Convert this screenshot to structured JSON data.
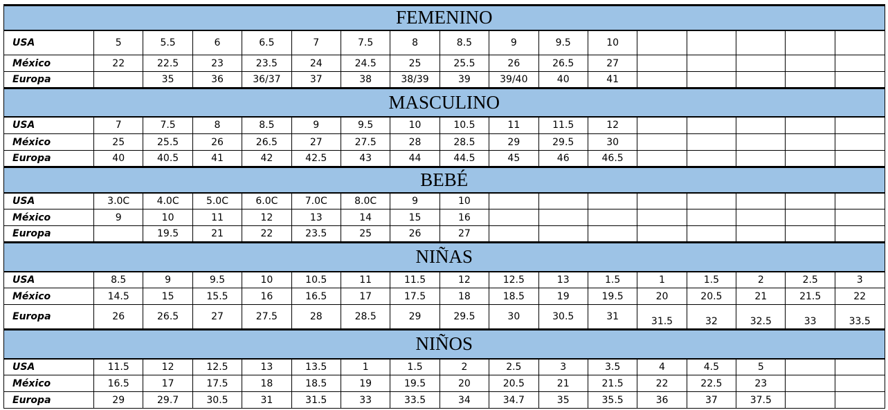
{
  "header_color": "#9dc3e6",
  "row_labels": [
    "USA",
    "México",
    "Europa"
  ],
  "sections": [
    {
      "title": "FEMENINO",
      "rows": [
        [
          "5",
          "5.5",
          "6",
          "6.5",
          "7",
          "7.5",
          "8",
          "8.5",
          "9",
          "9.5",
          "10",
          "",
          "",
          "",
          "",
          ""
        ],
        [
          "22",
          "22.5",
          "23",
          "23.5",
          "24",
          "24.5",
          "25",
          "25.5",
          "26",
          "26.5",
          "27",
          "",
          "",
          "",
          "",
          ""
        ],
        [
          "",
          "35",
          "36",
          "36/37",
          "37",
          "38",
          "38/39",
          "39",
          "39/40",
          "40",
          "41",
          "",
          "",
          "",
          "",
          ""
        ]
      ]
    },
    {
      "title": "MASCULINO",
      "rows": [
        [
          "7",
          "7.5",
          "8",
          "8.5",
          "9",
          "9.5",
          "10",
          "10.5",
          "11",
          "11.5",
          "12",
          "",
          "",
          "",
          "",
          ""
        ],
        [
          "25",
          "25.5",
          "26",
          "26.5",
          "27",
          "27.5",
          "28",
          "28.5",
          "29",
          "29.5",
          "30",
          "",
          "",
          "",
          "",
          ""
        ],
        [
          "40",
          "40.5",
          "41",
          "42",
          "42.5",
          "43",
          "44",
          "44.5",
          "45",
          "46",
          "46.5",
          "",
          "",
          "",
          "",
          ""
        ]
      ]
    },
    {
      "title": "BEBÉ",
      "rows": [
        [
          "3.0C",
          "4.0C",
          "5.0C",
          "6.0C",
          "7.0C",
          "8.0C",
          "9",
          "10",
          "",
          "",
          "",
          "",
          "",
          "",
          "",
          ""
        ],
        [
          "9",
          "10",
          "11",
          "12",
          "13",
          "14",
          "15",
          "16",
          "",
          "",
          "",
          "",
          "",
          "",
          "",
          ""
        ],
        [
          "",
          "19.5",
          "21",
          "22",
          "23.5",
          "25",
          "26",
          "27",
          "",
          "",
          "",
          "",
          "",
          "",
          "",
          ""
        ]
      ]
    },
    {
      "title": "NIÑAS",
      "rows": [
        [
          "8.5",
          "9",
          "9.5",
          "10",
          "10.5",
          "11",
          "11.5",
          "12",
          "12.5",
          "13",
          "1.5",
          "1",
          "1.5",
          "2",
          "2.5",
          "3"
        ],
        [
          "14.5",
          "15",
          "15.5",
          "16",
          "16.5",
          "17",
          "17.5",
          "18",
          "18.5",
          "19",
          "19.5",
          "20",
          "20.5",
          "21",
          "21.5",
          "22"
        ],
        [
          "26",
          "26.5",
          "27",
          "27.5",
          "28",
          "28.5",
          "29",
          "29.5",
          "30",
          "30.5",
          "31",
          "31.5",
          "32",
          "32.5",
          "33",
          "33.5"
        ]
      ]
    },
    {
      "title": "NIÑOS",
      "rows": [
        [
          "11.5",
          "12",
          "12.5",
          "13",
          "13.5",
          "1",
          "1.5",
          "2",
          "2.5",
          "3",
          "3.5",
          "4",
          "4.5",
          "5",
          "",
          ""
        ],
        [
          "16.5",
          "17",
          "17.5",
          "18",
          "18.5",
          "19",
          "19.5",
          "20",
          "20.5",
          "21",
          "21.5",
          "22",
          "22.5",
          "23",
          "",
          ""
        ],
        [
          "29",
          "29.7",
          "30.5",
          "31",
          "31.5",
          "33",
          "33.5",
          "34",
          "34.7",
          "35",
          "35.5",
          "36",
          "37",
          "37.5",
          "",
          ""
        ]
      ]
    }
  ]
}
